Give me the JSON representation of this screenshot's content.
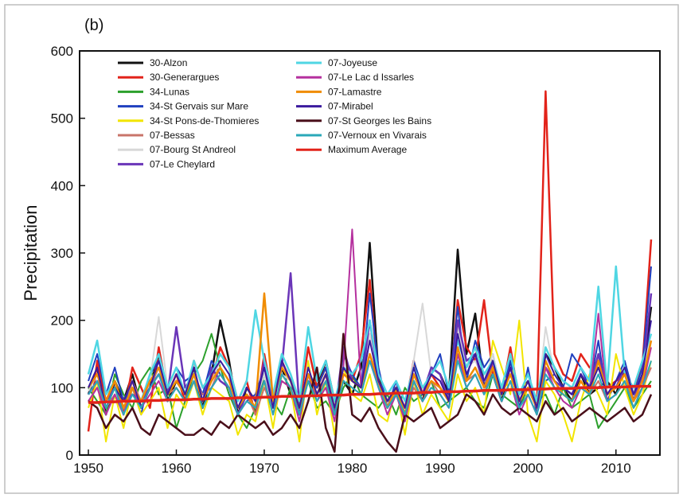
{
  "chart_data": {
    "type": "line",
    "panel_label": "(b)",
    "title": "",
    "xlabel": "",
    "ylabel": "Precipitation",
    "xlim": [
      1949,
      2015
    ],
    "ylim": [
      0,
      600
    ],
    "x_ticks": [
      1950,
      1960,
      1970,
      1980,
      1990,
      2000,
      2010
    ],
    "y_ticks": [
      0,
      100,
      200,
      300,
      400,
      500,
      600
    ],
    "grid": false,
    "legend_position": "top-left",
    "x": [
      1950,
      1951,
      1952,
      1953,
      1954,
      1955,
      1956,
      1957,
      1958,
      1959,
      1960,
      1961,
      1962,
      1963,
      1964,
      1965,
      1966,
      1967,
      1968,
      1969,
      1970,
      1971,
      1972,
      1973,
      1974,
      1975,
      1976,
      1977,
      1978,
      1979,
      1980,
      1981,
      1982,
      1983,
      1984,
      1985,
      1986,
      1987,
      1988,
      1989,
      1990,
      1991,
      1992,
      1993,
      1994,
      1995,
      1996,
      1997,
      1998,
      1999,
      2000,
      2001,
      2002,
      2003,
      2004,
      2005,
      2006,
      2007,
      2008,
      2009,
      2010,
      2011,
      2012,
      2013,
      2014
    ],
    "series": [
      {
        "name": "30-Alzon",
        "color": "#111111",
        "width": 2.5,
        "values": [
          90,
          130,
          60,
          110,
          80,
          120,
          70,
          100,
          150,
          80,
          110,
          90,
          130,
          70,
          120,
          200,
          140,
          60,
          100,
          80,
          110,
          70,
          130,
          90,
          60,
          120,
          100,
          140,
          80,
          110,
          90,
          130,
          315,
          120,
          70,
          100,
          60,
          110,
          80,
          130,
          120,
          90,
          305,
          150,
          210,
          100,
          120,
          80,
          140,
          90,
          110,
          70,
          150,
          130,
          100,
          80,
          120,
          90,
          100,
          110,
          90,
          130,
          80,
          120,
          220
        ]
      },
      {
        "name": "30-Generargues",
        "color": "#e2231a",
        "width": 2.5,
        "values": [
          35,
          140,
          80,
          110,
          60,
          130,
          100,
          70,
          160,
          90,
          120,
          80,
          140,
          100,
          110,
          160,
          130,
          80,
          110,
          60,
          150,
          80,
          140,
          110,
          70,
          160,
          100,
          130,
          60,
          120,
          110,
          150,
          260,
          110,
          80,
          100,
          70,
          140,
          90,
          120,
          100,
          80,
          230,
          160,
          140,
          230,
          120,
          90,
          160,
          80,
          100,
          70,
          540,
          150,
          120,
          110,
          150,
          130,
          140,
          100,
          110,
          120,
          100,
          130,
          320
        ]
      },
      {
        "name": "34-Lunas",
        "color": "#2ca02c",
        "width": 2,
        "values": [
          100,
          80,
          60,
          120,
          90,
          70,
          110,
          130,
          90,
          100,
          40,
          80,
          120,
          140,
          180,
          130,
          90,
          60,
          40,
          70,
          120,
          80,
          60,
          100,
          90,
          110,
          70,
          80,
          60,
          100,
          120,
          90,
          80,
          70,
          90,
          60,
          100,
          80,
          90,
          110,
          70,
          80,
          90,
          100,
          80,
          70,
          120,
          90,
          80,
          70,
          100,
          80,
          90,
          60,
          100,
          70,
          80,
          90,
          40,
          60,
          80,
          100,
          70,
          90,
          110
        ]
      },
      {
        "name": "34-St Gervais sur Mare",
        "color": "#1f3fbf",
        "width": 2,
        "values": [
          110,
          150,
          90,
          130,
          80,
          100,
          60,
          120,
          140,
          100,
          130,
          110,
          120,
          90,
          140,
          120,
          100,
          60,
          80,
          90,
          130,
          70,
          150,
          120,
          60,
          110,
          100,
          130,
          60,
          150,
          120,
          100,
          240,
          130,
          70,
          110,
          50,
          140,
          100,
          120,
          150,
          90,
          220,
          110,
          170,
          130,
          150,
          90,
          140,
          70,
          130,
          60,
          110,
          120,
          100,
          150,
          130,
          100,
          170,
          80,
          110,
          140,
          90,
          130,
          280
        ]
      },
      {
        "name": "34-St Pons-de-Thomieres",
        "color": "#f2e500",
        "width": 2,
        "values": [
          70,
          110,
          20,
          90,
          40,
          100,
          60,
          80,
          100,
          40,
          90,
          70,
          110,
          60,
          100,
          90,
          80,
          30,
          60,
          50,
          110,
          40,
          120,
          100,
          20,
          140,
          60,
          110,
          30,
          130,
          90,
          80,
          120,
          60,
          50,
          100,
          30,
          110,
          60,
          90,
          70,
          50,
          120,
          80,
          100,
          60,
          170,
          130,
          90,
          200,
          60,
          20,
          110,
          90,
          60,
          20,
          80,
          120,
          90,
          60,
          150,
          100,
          60,
          90,
          140
        ]
      },
      {
        "name": "07-Bessas",
        "color": "#c9746a",
        "width": 2,
        "values": [
          80,
          100,
          70,
          90,
          60,
          110,
          80,
          100,
          130,
          90,
          100,
          80,
          110,
          90,
          100,
          130,
          110,
          70,
          90,
          60,
          100,
          70,
          110,
          100,
          60,
          120,
          90,
          110,
          60,
          110,
          100,
          90,
          140,
          100,
          70,
          90,
          60,
          100,
          80,
          110,
          90,
          70,
          150,
          110,
          120,
          90,
          130,
          80,
          110,
          70,
          90,
          60,
          140,
          110,
          90,
          80,
          100,
          90,
          110,
          80,
          90,
          110,
          80,
          100,
          130
        ]
      },
      {
        "name": "07-Bourg St Andreol",
        "color": "#d8d8d8",
        "width": 2,
        "values": [
          95,
          120,
          70,
          100,
          80,
          110,
          70,
          110,
          205,
          100,
          110,
          90,
          120,
          80,
          110,
          140,
          120,
          70,
          90,
          80,
          120,
          70,
          120,
          110,
          70,
          130,
          90,
          120,
          70,
          120,
          110,
          100,
          180,
          110,
          80,
          100,
          70,
          140,
          225,
          120,
          110,
          80,
          190,
          130,
          140,
          110,
          150,
          90,
          130,
          80,
          110,
          70,
          190,
          120,
          100,
          90,
          120,
          100,
          130,
          90,
          100,
          130,
          90,
          120,
          180
        ]
      },
      {
        "name": "07-Le Cheylard",
        "color": "#6a35b8",
        "width": 2.5,
        "values": [
          90,
          110,
          80,
          100,
          70,
          90,
          80,
          100,
          120,
          90,
          190,
          100,
          120,
          80,
          130,
          110,
          100,
          60,
          90,
          70,
          140,
          80,
          130,
          270,
          70,
          110,
          90,
          120,
          60,
          160,
          110,
          100,
          200,
          110,
          70,
          90,
          60,
          120,
          90,
          130,
          120,
          80,
          200,
          140,
          150,
          100,
          140,
          90,
          130,
          80,
          100,
          70,
          130,
          110,
          100,
          90,
          120,
          100,
          150,
          90,
          100,
          130,
          80,
          120,
          240
        ]
      },
      {
        "name": "07-Joyeuse",
        "color": "#4fd6e3",
        "width": 2.5,
        "values": [
          120,
          170,
          90,
          110,
          70,
          100,
          80,
          120,
          150,
          100,
          130,
          90,
          140,
          100,
          120,
          150,
          130,
          80,
          110,
          215,
          140,
          90,
          150,
          120,
          80,
          190,
          110,
          140,
          80,
          130,
          120,
          140,
          200,
          120,
          90,
          110,
          80,
          130,
          100,
          120,
          140,
          100,
          170,
          130,
          160,
          120,
          140,
          100,
          150,
          90,
          120,
          80,
          160,
          130,
          110,
          100,
          130,
          110,
          250,
          100,
          280,
          120,
          100,
          140,
          180
        ]
      },
      {
        "name": "07-Le Lac d Issarles",
        "color": "#b5309e",
        "width": 2,
        "values": [
          80,
          100,
          60,
          90,
          60,
          100,
          70,
          90,
          110,
          80,
          100,
          80,
          110,
          70,
          100,
          120,
          100,
          60,
          80,
          70,
          110,
          60,
          110,
          100,
          50,
          120,
          80,
          100,
          50,
          130,
          335,
          100,
          150,
          100,
          60,
          90,
          50,
          110,
          80,
          100,
          90,
          70,
          150,
          100,
          120,
          90,
          120,
          80,
          110,
          60,
          90,
          60,
          130,
          100,
          80,
          70,
          100,
          90,
          210,
          80,
          90,
          110,
          70,
          100,
          160
        ]
      },
      {
        "name": "07-Lamastre",
        "color": "#f08c00",
        "width": 2.5,
        "values": [
          100,
          120,
          80,
          110,
          70,
          100,
          80,
          110,
          130,
          90,
          110,
          90,
          120,
          80,
          110,
          130,
          110,
          70,
          90,
          70,
          240,
          80,
          130,
          110,
          70,
          120,
          90,
          120,
          70,
          120,
          110,
          100,
          150,
          110,
          70,
          100,
          60,
          120,
          90,
          110,
          100,
          80,
          160,
          110,
          130,
          100,
          130,
          90,
          120,
          80,
          100,
          70,
          140,
          110,
          90,
          80,
          110,
          90,
          140,
          90,
          100,
          120,
          80,
          110,
          170
        ]
      },
      {
        "name": "07-Mirabel",
        "color": "#3b1a9e",
        "width": 2,
        "values": [
          100,
          130,
          70,
          100,
          80,
          110,
          70,
          100,
          140,
          90,
          120,
          90,
          130,
          80,
          120,
          140,
          120,
          70,
          100,
          80,
          130,
          70,
          140,
          110,
          70,
          130,
          90,
          120,
          70,
          130,
          110,
          100,
          170,
          110,
          80,
          100,
          70,
          130,
          90,
          120,
          110,
          80,
          180,
          120,
          150,
          110,
          140,
          90,
          130,
          80,
          110,
          70,
          150,
          120,
          100,
          90,
          120,
          100,
          130,
          90,
          110,
          130,
          90,
          120,
          200
        ]
      },
      {
        "name": "07-St Georges les Bains",
        "color": "#4a0f1a",
        "width": 2.5,
        "values": [
          80,
          70,
          40,
          60,
          50,
          70,
          40,
          30,
          60,
          50,
          40,
          30,
          30,
          40,
          30,
          50,
          40,
          60,
          50,
          40,
          50,
          30,
          40,
          60,
          40,
          80,
          130,
          40,
          5,
          180,
          60,
          50,
          70,
          40,
          20,
          5,
          60,
          50,
          60,
          70,
          40,
          50,
          60,
          90,
          80,
          60,
          90,
          70,
          60,
          70,
          60,
          50,
          80,
          60,
          70,
          50,
          60,
          70,
          60,
          50,
          60,
          70,
          50,
          60,
          90
        ]
      },
      {
        "name": "07-Vernoux en Vivarais",
        "color": "#2aa8b8",
        "width": 2,
        "values": [
          90,
          110,
          70,
          100,
          60,
          90,
          70,
          100,
          120,
          80,
          100,
          80,
          110,
          70,
          100,
          120,
          100,
          60,
          80,
          70,
          110,
          60,
          120,
          100,
          60,
          110,
          80,
          110,
          60,
          110,
          100,
          90,
          140,
          100,
          70,
          90,
          60,
          110,
          80,
          100,
          90,
          70,
          140,
          100,
          120,
          90,
          120,
          80,
          110,
          70,
          90,
          60,
          120,
          100,
          90,
          80,
          100,
          90,
          120,
          80,
          90,
          110,
          70,
          100,
          140
        ]
      },
      {
        "name": "Maximum Average",
        "color": "#e2231a",
        "width": 3.5,
        "values": [
          78,
          78,
          79,
          79,
          80,
          80,
          80,
          81,
          81,
          82,
          82,
          82,
          83,
          83,
          84,
          84,
          84,
          85,
          85,
          85,
          86,
          86,
          87,
          87,
          87,
          88,
          88,
          89,
          89,
          89,
          90,
          90,
          90,
          91,
          91,
          92,
          92,
          92,
          93,
          93,
          94,
          94,
          94,
          95,
          95,
          96,
          96,
          96,
          97,
          97,
          97,
          98,
          98,
          99,
          99,
          99,
          100,
          100,
          100,
          101,
          101,
          101,
          102,
          102,
          102
        ]
      }
    ]
  }
}
